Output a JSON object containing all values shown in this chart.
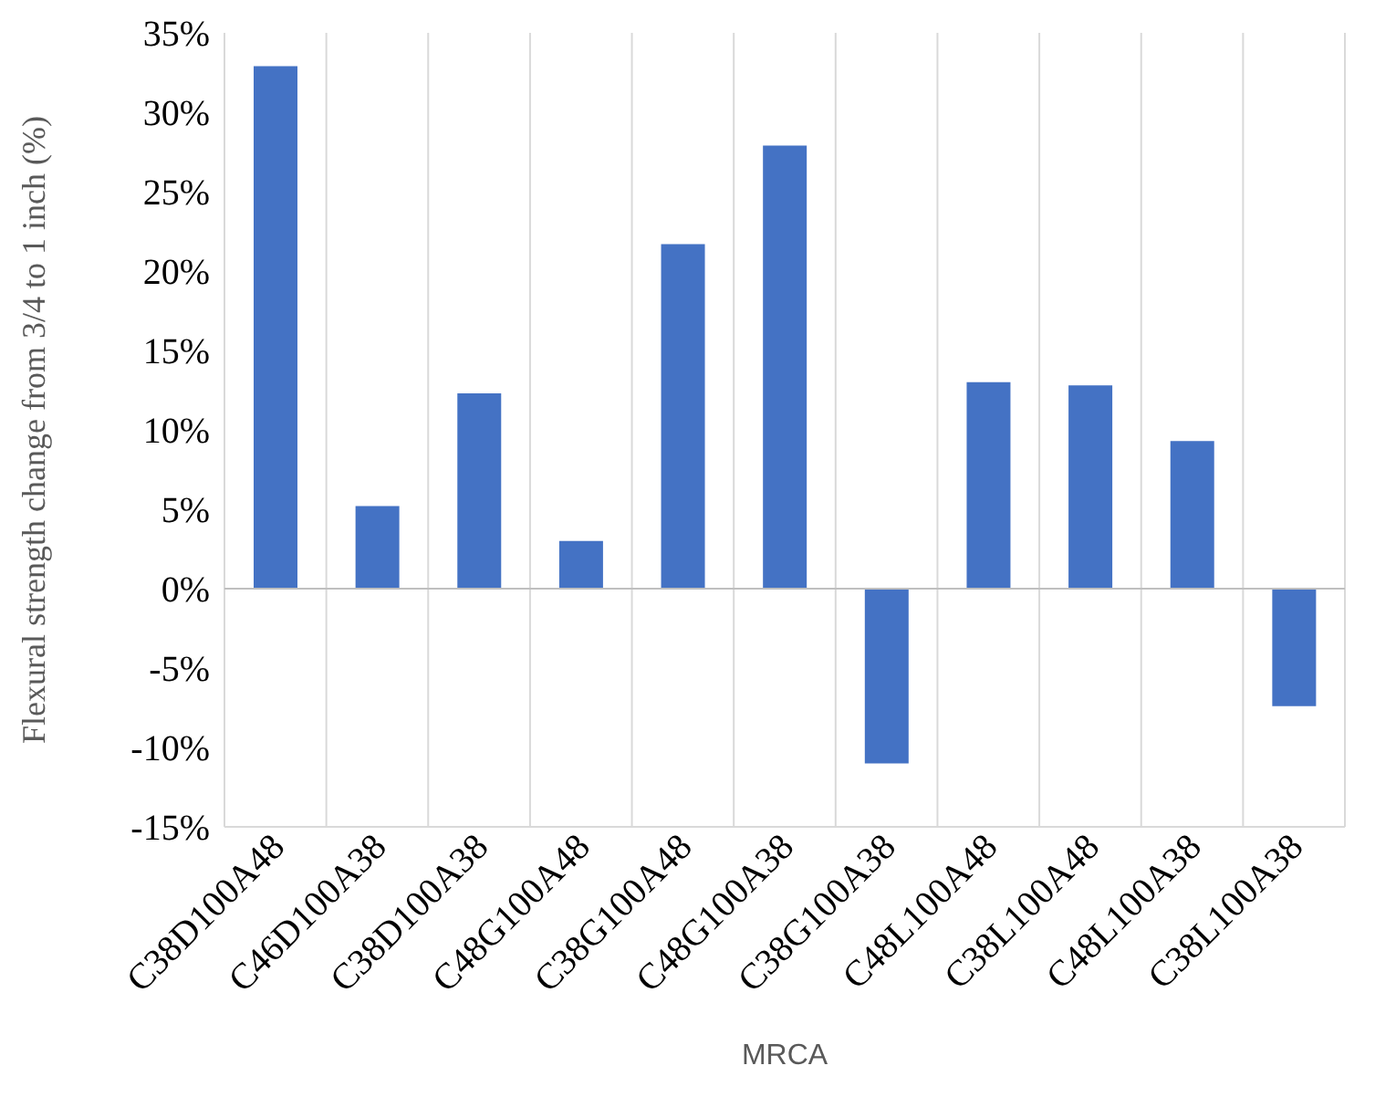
{
  "chart_data": {
    "type": "bar",
    "xlabel": "MRCA",
    "ylabel": "Flexural strength change from 3/4 to 1 inch (%)",
    "categories": [
      "C38D100A48",
      "C46D100A38",
      "C38D100A38",
      "C48G100A48",
      "C38G100A48",
      "C48G100A38",
      "C38G100A38",
      "C48L100A48",
      "C38L100A48",
      "C48L100A38",
      "C38L100A38"
    ],
    "values": [
      32.9,
      5.2,
      12.3,
      3.0,
      21.7,
      27.9,
      -11.0,
      13.0,
      12.8,
      9.3,
      -7.4
    ],
    "color": "#4472c4",
    "ylim": [
      -15,
      35
    ],
    "yticks": [
      {
        "value": -15,
        "label": "-15%"
      },
      {
        "value": -10,
        "label": "-10%"
      },
      {
        "value": -5,
        "label": "-5%"
      },
      {
        "value": 0,
        "label": "0%"
      },
      {
        "value": 5,
        "label": "5%"
      },
      {
        "value": 10,
        "label": "10%"
      },
      {
        "value": 15,
        "label": "15%"
      },
      {
        "value": 20,
        "label": "20%"
      },
      {
        "value": 25,
        "label": "25%"
      },
      {
        "value": 30,
        "label": "30%"
      },
      {
        "value": 35,
        "label": "35%"
      }
    ],
    "ref_lines": [
      {
        "axis": "y",
        "value": 0,
        "color": "#bfbfbf"
      }
    ],
    "grid": "x"
  }
}
